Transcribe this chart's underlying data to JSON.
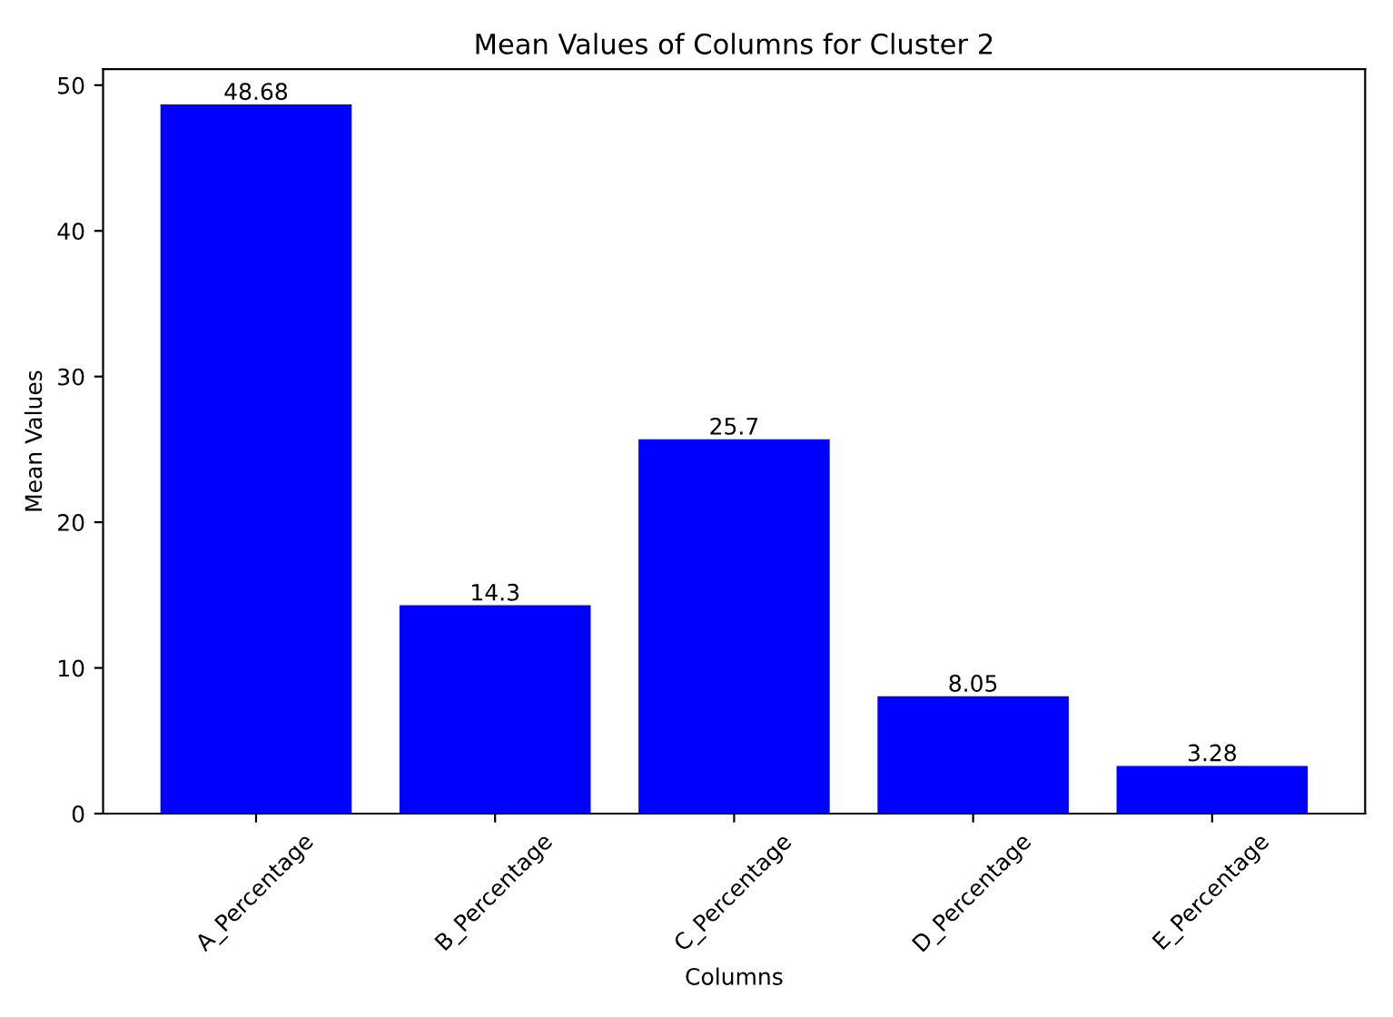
{
  "chart_data": {
    "type": "bar",
    "title": "Mean Values of Columns for Cluster 2",
    "xlabel": "Columns",
    "ylabel": "Mean Values",
    "categories": [
      "A_Percentage",
      "B_Percentage",
      "C_Percentage",
      "D_Percentage",
      "E_Percentage"
    ],
    "values": [
      48.68,
      14.3,
      25.7,
      8.05,
      3.28
    ],
    "color": "#0000ff",
    "ylim": [
      0,
      51.1
    ],
    "yticks": [
      0,
      10,
      20,
      30,
      40,
      50
    ],
    "data_labels": true,
    "grid": false,
    "legend": false
  }
}
